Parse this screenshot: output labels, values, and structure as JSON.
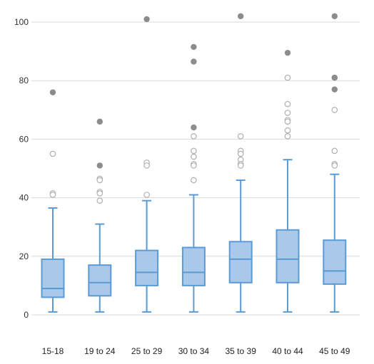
{
  "colors": {
    "box_fill": "#a9c8ea",
    "box_stroke": "#5b9bd5",
    "grid": "#d9d9d9",
    "outlier_filled": "#8c8c8c",
    "outlier_hollow_stroke": "#b0b0b0",
    "text": "#333333"
  },
  "chart_data": {
    "type": "box",
    "title": "",
    "xlabel": "",
    "ylabel": "",
    "ylim": [
      0,
      100
    ],
    "yticks": [
      0,
      20,
      40,
      60,
      80,
      100
    ],
    "grid": true,
    "legend": "none",
    "categories": [
      "15-18",
      "19 to 24",
      "25 to 29",
      "30 to 34",
      "35 to 39",
      "40 to 44",
      "45 to 49"
    ],
    "boxes": [
      {
        "min": 1,
        "q1": 6,
        "median": 9,
        "q3": 19,
        "max": 36.5,
        "outliers_hollow": [
          55,
          41.5,
          41
        ],
        "outliers_filled": [
          76
        ]
      },
      {
        "min": 1,
        "q1": 6.5,
        "median": 11,
        "q3": 17,
        "max": 31,
        "outliers_hollow": [
          46.5,
          46,
          42,
          41.5,
          39
        ],
        "outliers_filled": [
          66,
          51
        ]
      },
      {
        "min": 1,
        "q1": 10,
        "median": 14.5,
        "q3": 22,
        "max": 39,
        "outliers_hollow": [
          52,
          51,
          41
        ],
        "outliers_filled": [
          101
        ]
      },
      {
        "min": 1,
        "q1": 10,
        "median": 14.5,
        "q3": 23,
        "max": 41,
        "outliers_hollow": [
          61,
          56,
          54,
          51.5,
          51,
          46
        ],
        "outliers_filled": [
          91.5,
          86.5,
          64
        ]
      },
      {
        "min": 1,
        "q1": 11,
        "median": 19,
        "q3": 25,
        "max": 46,
        "outliers_hollow": [
          61,
          56,
          55,
          53,
          51.5,
          51
        ],
        "outliers_filled": [
          102
        ]
      },
      {
        "min": 1,
        "q1": 11,
        "median": 19,
        "q3": 29,
        "max": 53,
        "outliers_hollow": [
          81,
          72,
          69,
          66.5,
          66,
          63,
          61
        ],
        "outliers_filled": [
          89.5
        ]
      },
      {
        "min": 1,
        "q1": 10.5,
        "median": 15,
        "q3": 25.5,
        "max": 48,
        "outliers_hollow": [
          81,
          70,
          56,
          51.5,
          51
        ],
        "outliers_filled": [
          102,
          81,
          77
        ]
      }
    ]
  }
}
